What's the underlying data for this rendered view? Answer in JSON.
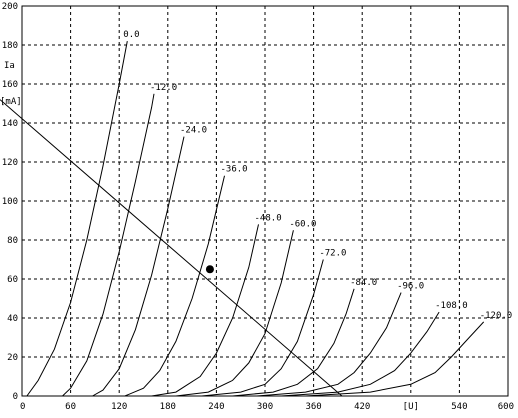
{
  "chart_data": {
    "type": "line",
    "title": "",
    "ylabel": "Ia",
    "yunit": "[mA]",
    "xunit": "[U]",
    "xlim": [
      0,
      600
    ],
    "ylim": [
      0,
      200
    ],
    "xticks": [
      0,
      60,
      120,
      180,
      240,
      300,
      360,
      420,
      480,
      540,
      600
    ],
    "yticks": [
      0,
      20,
      40,
      60,
      80,
      100,
      120,
      140,
      160,
      180,
      200
    ],
    "grid": true,
    "series": [
      {
        "name": "0.0",
        "x": [
          6,
          20,
          40,
          60,
          80,
          100,
          120,
          130
        ],
        "y": [
          0,
          8,
          24,
          48,
          80,
          118,
          160,
          182
        ]
      },
      {
        "name": "-12.0",
        "x": [
          50,
          60,
          80,
          100,
          120,
          140,
          160,
          163
        ],
        "y": [
          0,
          4,
          18,
          42,
          74,
          110,
          148,
          155
        ]
      },
      {
        "name": "-24.0",
        "x": [
          87,
          100,
          120,
          140,
          160,
          180,
          200
        ],
        "y": [
          0,
          3,
          14,
          34,
          62,
          96,
          133
        ]
      },
      {
        "name": "-36.0",
        "x": [
          127,
          150,
          170,
          190,
          210,
          230,
          250
        ],
        "y": [
          0,
          4,
          13,
          28,
          50,
          78,
          113
        ]
      },
      {
        "name": "-48.0",
        "x": [
          160,
          190,
          220,
          240,
          260,
          280,
          292
        ],
        "y": [
          0,
          2,
          10,
          22,
          40,
          66,
          88
        ]
      },
      {
        "name": "-60.0",
        "x": [
          190,
          230,
          260,
          280,
          300,
          320,
          335
        ],
        "y": [
          0,
          2,
          8,
          17,
          32,
          58,
          85
        ]
      },
      {
        "name": "-72.0",
        "x": [
          222,
          270,
          300,
          320,
          340,
          360,
          372
        ],
        "y": [
          0,
          2,
          6,
          14,
          28,
          52,
          70
        ]
      },
      {
        "name": "-84.0",
        "x": [
          260,
          310,
          340,
          365,
          385,
          400,
          410
        ],
        "y": [
          0,
          2,
          6,
          14,
          27,
          42,
          55
        ]
      },
      {
        "name": "-96.0",
        "x": [
          290,
          350,
          390,
          410,
          430,
          450,
          468
        ],
        "y": [
          0,
          2,
          6,
          12,
          22,
          35,
          53
        ]
      },
      {
        "name": "-108.0",
        "x": [
          320,
          390,
          430,
          460,
          480,
          500,
          515
        ],
        "y": [
          0,
          2,
          6,
          13,
          22,
          33,
          43
        ]
      },
      {
        "name": "-120.0",
        "x": [
          350,
          430,
          480,
          510,
          530,
          550,
          570
        ],
        "y": [
          0,
          2,
          6,
          12,
          20,
          29,
          38
        ]
      }
    ],
    "load_line": {
      "x": [
        0,
        395
      ],
      "y": [
        152,
        0
      ]
    },
    "operating_point": {
      "x": 232,
      "y": 65
    }
  },
  "colors": {
    "line": "#000000",
    "grid": "#000000",
    "background": "#ffffff"
  }
}
